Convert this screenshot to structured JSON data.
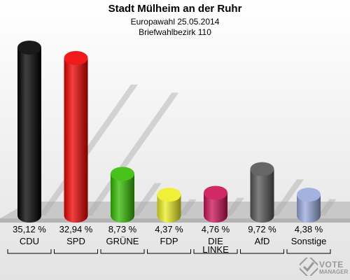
{
  "chart_data": {
    "type": "bar",
    "title": "Stadt Mülheim an der Ruhr",
    "subtitle": [
      "Europawahl 25.05.2014",
      "Briefwahlbezirk 110"
    ],
    "categories": [
      "CDU",
      "SPD",
      "GRÜNE",
      "FDP",
      "DIE LINKE",
      "AfD",
      "Sonstige"
    ],
    "category_lines": [
      [
        "CDU"
      ],
      [
        "SPD"
      ],
      [
        "GRÜNE"
      ],
      [
        "FDP"
      ],
      [
        "DIE",
        "LINKE"
      ],
      [
        "AfD"
      ],
      [
        "Sonstige"
      ]
    ],
    "values": [
      35.12,
      32.94,
      8.73,
      4.37,
      4.76,
      9.72,
      4.38
    ],
    "value_labels": [
      "35,12 %",
      "32,94 %",
      "8,73 %",
      "4,37 %",
      "4,76 %",
      "9,72 %",
      "4,38 %"
    ],
    "colors": [
      "#000000",
      "#ee0000",
      "#33bb00",
      "#eeee22",
      "#cc1155",
      "#555555",
      "#99aadd"
    ],
    "xlabel": "",
    "ylabel": "",
    "ylim": [
      0,
      35.12
    ],
    "grid": false,
    "legend": "none"
  },
  "logo": {
    "line1": "VOTE",
    "line2": "MANAGER"
  }
}
